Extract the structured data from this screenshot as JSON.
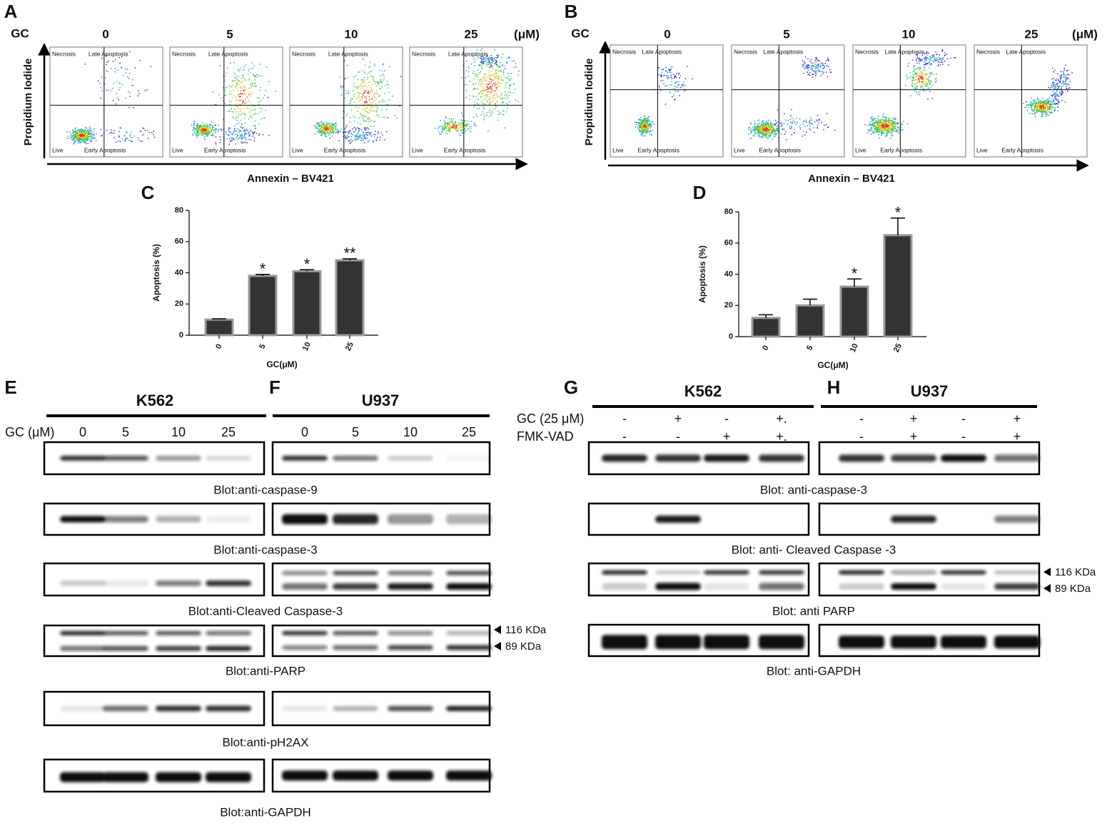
{
  "flow": [
    {
      "letter": "A",
      "gc": "GC",
      "doses": [
        "0",
        "5",
        "10",
        "25"
      ],
      "unit": "(μM)",
      "ylabel": "Propidium Iodide",
      "xlabel": "Annexin – BV421",
      "quadrants": [
        "Necrosis",
        "Late Apoptosis",
        "Live",
        "Early Apoptosis"
      ]
    },
    {
      "letter": "B",
      "gc": "GC",
      "doses": [
        "0",
        "5",
        "10",
        "25"
      ],
      "unit": "(μM)",
      "ylabel": "Propidium Iodide",
      "xlabel": "Annexin – BV421",
      "quadrants": [
        "Necrosis",
        "Late Apoptosis",
        "Live",
        "Early Apoptosis"
      ]
    }
  ],
  "chart_data": [
    {
      "type": "bar",
      "letter": "C",
      "ylabel": "Apoptosis (%)",
      "xlabel": "GC(μM)",
      "categories": [
        "0",
        "5",
        "10",
        "25"
      ],
      "values": [
        10,
        38,
        41,
        48
      ],
      "errors": [
        0.5,
        1,
        1,
        1
      ],
      "significance": [
        null,
        "*",
        "*",
        "**"
      ],
      "ylim": [
        0,
        80
      ],
      "yticks": [
        0,
        20,
        40,
        60,
        80
      ],
      "color": "#333333"
    },
    {
      "type": "bar",
      "letter": "D",
      "ylabel": "Apoptosis (%)",
      "xlabel": "GC(μM)",
      "categories": [
        "0",
        "5",
        "10",
        "25"
      ],
      "values": [
        12,
        20,
        32,
        65
      ],
      "errors": [
        2,
        4,
        5,
        11
      ],
      "significance": [
        null,
        null,
        "*",
        "*"
      ],
      "ylim": [
        0,
        80
      ],
      "yticks": [
        0,
        20,
        40,
        60,
        80
      ],
      "color": "#333333"
    }
  ],
  "blots_ef": {
    "dose_label": "GC (μM)",
    "panels": [
      {
        "letter": "E",
        "cell_line": "K562",
        "lanes": [
          "0",
          "5",
          "10",
          "25"
        ]
      },
      {
        "letter": "F",
        "cell_line": "U937",
        "lanes": [
          "0",
          "5",
          "10",
          "25"
        ]
      }
    ],
    "captions": [
      "Blot:anti-caspase-9",
      "Blot:anti-caspase-3",
      "Blot:anti-Cleaved Caspase-3",
      "Blot:anti-PARP",
      "Blot:anti-pH2AX",
      "Blot:anti-GAPDH"
    ],
    "markers": [
      "116 KDa",
      "89 KDa"
    ]
  },
  "blots_gh": {
    "row_labels": [
      "GC (25 μM)",
      "FMK-VAD"
    ],
    "panels": [
      {
        "letter": "G",
        "cell_line": "K562",
        "rows": [
          [
            "-",
            "+",
            "-",
            "+."
          ],
          [
            "-",
            "-",
            "+",
            "+."
          ]
        ]
      },
      {
        "letter": "H",
        "cell_line": "U937",
        "rows": [
          [
            "-",
            "+",
            "-",
            "+"
          ],
          [
            "-",
            "+",
            "-",
            "+"
          ]
        ]
      }
    ],
    "captions": [
      "Blot: anti-caspase-3",
      "Blot: anti- Cleaved Caspase -3",
      "Blot: anti PARP",
      "Blot: anti-GAPDH"
    ],
    "markers": [
      "116 KDa",
      "89 KDa"
    ]
  }
}
